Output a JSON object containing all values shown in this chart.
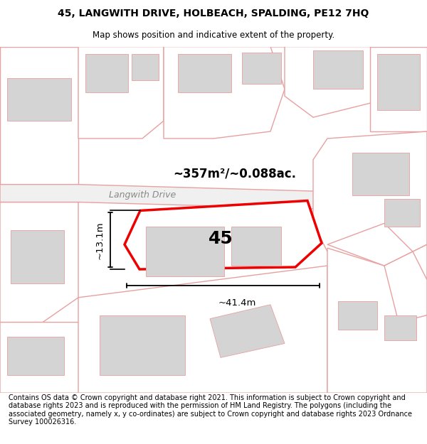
{
  "title_line1": "45, LANGWITH DRIVE, HOLBEACH, SPALDING, PE12 7HQ",
  "title_line2": "Map shows position and indicative extent of the property.",
  "footer_text": "Contains OS data © Crown copyright and database right 2021. This information is subject to Crown copyright and database rights 2023 and is reproduced with the permission of HM Land Registry. The polygons (including the associated geometry, namely x, y co-ordinates) are subject to Crown copyright and database rights 2023 Ordnance Survey 100026316.",
  "area_label": "~357m²/~0.088ac.",
  "number_label": "45",
  "width_label": "~41.4m",
  "height_label": "~13.1m",
  "road_label": "Langwith Drive",
  "bg_color": "#ffffff",
  "map_bg": "#ffffff",
  "plot_outline_color": "#ee0000",
  "other_outline_color": "#e8a0a0",
  "building_fill": "#d4d4d4",
  "title_fontsize": 10,
  "footer_fontsize": 7.5
}
